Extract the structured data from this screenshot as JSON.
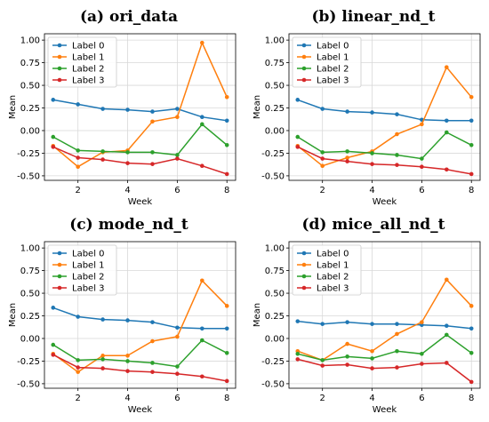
{
  "chart_data": [
    {
      "type": "line",
      "title": "(a) ori_data",
      "xlabel": "Week",
      "ylabel": "Mean",
      "x": [
        1,
        2,
        3,
        4,
        5,
        6,
        7,
        8
      ],
      "xticks": [
        2,
        4,
        6,
        8
      ],
      "yticks": [
        -0.5,
        -0.25,
        0.0,
        0.25,
        0.5,
        0.75,
        1.0
      ],
      "ylim": [
        -0.55,
        1.07
      ],
      "legend_position": "upper-left",
      "series": [
        {
          "name": "Label 0",
          "color": "#1f77b4",
          "values": [
            0.34,
            0.29,
            0.24,
            0.23,
            0.21,
            0.24,
            0.15,
            0.11
          ]
        },
        {
          "name": "Label 1",
          "color": "#ff7f0e",
          "values": [
            -0.17,
            -0.4,
            -0.24,
            -0.22,
            0.1,
            0.15,
            0.97,
            0.37
          ]
        },
        {
          "name": "Label 2",
          "color": "#2ca02c",
          "values": [
            -0.07,
            -0.22,
            -0.23,
            -0.24,
            -0.24,
            -0.27,
            0.07,
            -0.16
          ]
        },
        {
          "name": "Label 3",
          "color": "#d62728",
          "values": [
            -0.18,
            -0.3,
            -0.32,
            -0.36,
            -0.37,
            -0.31,
            -0.39,
            -0.48
          ]
        }
      ]
    },
    {
      "type": "line",
      "title": "(b) linear_nd_t",
      "xlabel": "Week",
      "ylabel": "Mean",
      "x": [
        1,
        2,
        3,
        4,
        5,
        6,
        7,
        8
      ],
      "xticks": [
        2,
        4,
        6,
        8
      ],
      "yticks": [
        -0.5,
        -0.25,
        0.0,
        0.25,
        0.5,
        0.75,
        1.0
      ],
      "ylim": [
        -0.55,
        1.07
      ],
      "legend_position": "upper-left",
      "series": [
        {
          "name": "Label 0",
          "color": "#1f77b4",
          "values": [
            0.34,
            0.24,
            0.21,
            0.2,
            0.18,
            0.12,
            0.11,
            0.11
          ]
        },
        {
          "name": "Label 1",
          "color": "#ff7f0e",
          "values": [
            -0.17,
            -0.39,
            -0.3,
            -0.23,
            -0.04,
            0.07,
            0.7,
            0.37
          ]
        },
        {
          "name": "Label 2",
          "color": "#2ca02c",
          "values": [
            -0.07,
            -0.24,
            -0.23,
            -0.25,
            -0.27,
            -0.31,
            -0.02,
            -0.16
          ]
        },
        {
          "name": "Label 3",
          "color": "#d62728",
          "values": [
            -0.18,
            -0.31,
            -0.34,
            -0.37,
            -0.38,
            -0.4,
            -0.43,
            -0.48
          ]
        }
      ]
    },
    {
      "type": "line",
      "title": "(c) mode_nd_t",
      "xlabel": "Week",
      "ylabel": "Mean",
      "x": [
        1,
        2,
        3,
        4,
        5,
        6,
        7,
        8
      ],
      "xticks": [
        2,
        4,
        6,
        8
      ],
      "yticks": [
        -0.5,
        -0.25,
        0.0,
        0.25,
        0.5,
        0.75,
        1.0
      ],
      "ylim": [
        -0.55,
        1.07
      ],
      "legend_position": "upper-left",
      "series": [
        {
          "name": "Label 0",
          "color": "#1f77b4",
          "values": [
            0.34,
            0.24,
            0.21,
            0.2,
            0.18,
            0.12,
            0.11,
            0.11
          ]
        },
        {
          "name": "Label 1",
          "color": "#ff7f0e",
          "values": [
            -0.17,
            -0.37,
            -0.19,
            -0.19,
            -0.03,
            0.02,
            0.64,
            0.36
          ]
        },
        {
          "name": "Label 2",
          "color": "#2ca02c",
          "values": [
            -0.07,
            -0.24,
            -0.23,
            -0.25,
            -0.27,
            -0.31,
            -0.02,
            -0.16
          ]
        },
        {
          "name": "Label 3",
          "color": "#d62728",
          "values": [
            -0.18,
            -0.32,
            -0.33,
            -0.36,
            -0.37,
            -0.39,
            -0.42,
            -0.47
          ]
        }
      ]
    },
    {
      "type": "line",
      "title": "(d) mice_all_nd_t",
      "xlabel": "Week",
      "ylabel": "Mean",
      "x": [
        1,
        2,
        3,
        4,
        5,
        6,
        7,
        8
      ],
      "xticks": [
        2,
        4,
        6,
        8
      ],
      "yticks": [
        -0.5,
        -0.25,
        0.0,
        0.25,
        0.5,
        0.75,
        1.0
      ],
      "ylim": [
        -0.55,
        1.07
      ],
      "legend_position": "upper-left",
      "series": [
        {
          "name": "Label 0",
          "color": "#1f77b4",
          "values": [
            0.19,
            0.16,
            0.18,
            0.16,
            0.16,
            0.15,
            0.14,
            0.11
          ]
        },
        {
          "name": "Label 1",
          "color": "#ff7f0e",
          "values": [
            -0.14,
            -0.24,
            -0.06,
            -0.14,
            0.05,
            0.18,
            0.65,
            0.36
          ]
        },
        {
          "name": "Label 2",
          "color": "#2ca02c",
          "values": [
            -0.17,
            -0.24,
            -0.2,
            -0.22,
            -0.14,
            -0.17,
            0.04,
            -0.16
          ]
        },
        {
          "name": "Label 3",
          "color": "#d62728",
          "values": [
            -0.23,
            -0.3,
            -0.29,
            -0.33,
            -0.32,
            -0.28,
            -0.27,
            -0.48
          ]
        }
      ]
    }
  ]
}
